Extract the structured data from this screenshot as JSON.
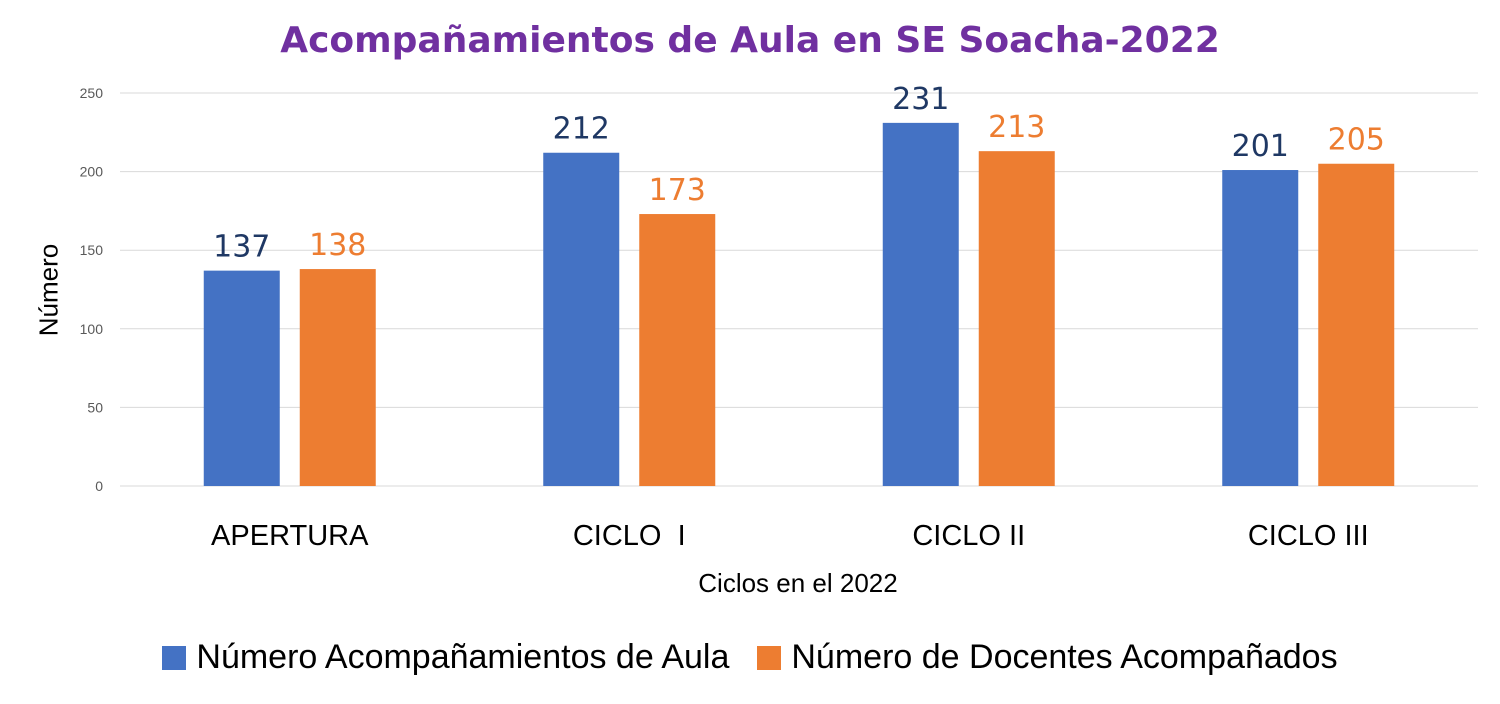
{
  "chart_data": {
    "type": "bar",
    "title": "Acompañamientos de Aula en SE Soacha-2022",
    "xlabel": "Ciclos en el 2022",
    "ylabel": "Número",
    "categories": [
      "APERTURA",
      "CICLO  I",
      "CICLO II",
      "CICLO III"
    ],
    "series": [
      {
        "name": "Número Acompañamientos de Aula",
        "values": [
          137,
          212,
          231,
          201
        ],
        "color": "#4472C4",
        "label_color": "#1F3864"
      },
      {
        "name": "Número de Docentes Acompañados",
        "values": [
          138,
          173,
          213,
          205
        ],
        "color": "#ED7D31",
        "label_color": "#ED7D31"
      }
    ],
    "ylim": [
      0,
      250
    ],
    "yticks": [
      0,
      50,
      100,
      150,
      200,
      250
    ],
    "grid": true,
    "legend_position": "bottom"
  }
}
